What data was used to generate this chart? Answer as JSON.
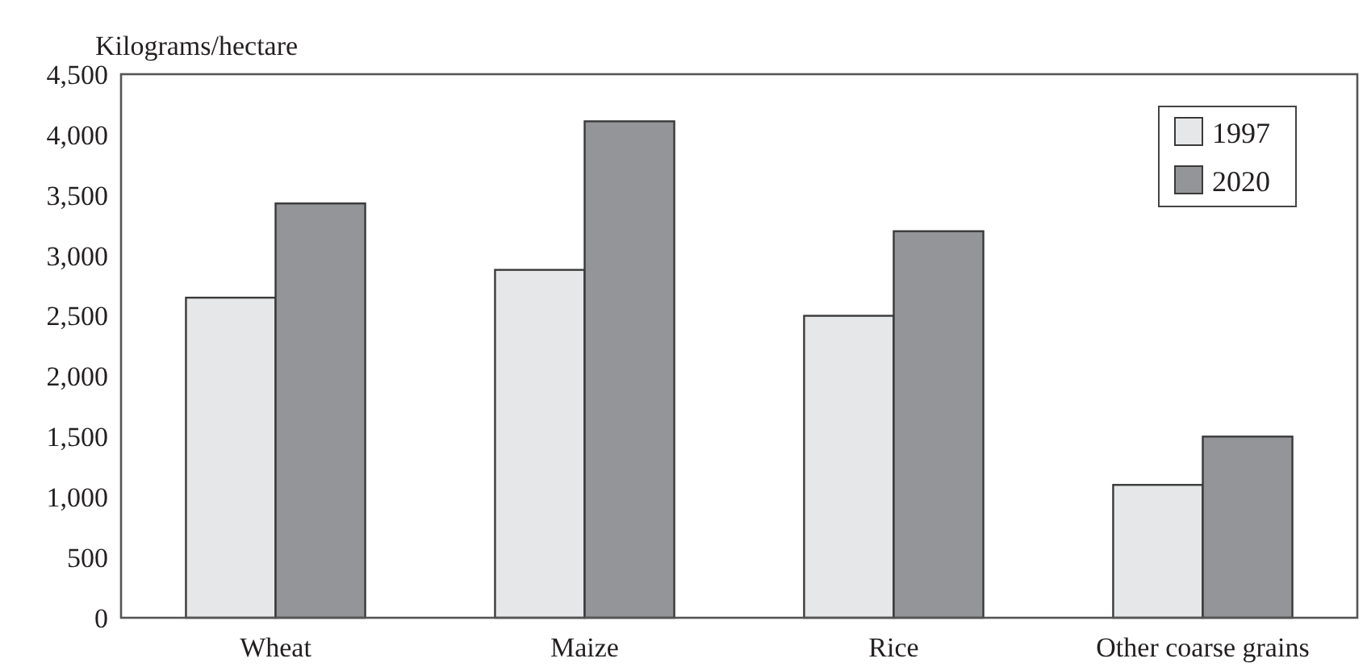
{
  "chart_data": {
    "type": "bar",
    "ylabel": "Kilograms/hectare",
    "categories": [
      "Wheat",
      "Maize",
      "Rice",
      "Other coarse grains"
    ],
    "series": [
      {
        "name": "1997",
        "color": "#e6e7e9",
        "values": [
          2650,
          2880,
          2500,
          1100
        ]
      },
      {
        "name": "2020",
        "color": "#939598",
        "values": [
          3430,
          4110,
          3200,
          1500
        ]
      }
    ],
    "ylim": [
      0,
      4500
    ],
    "yticks": [
      {
        "value": 0,
        "label": "0"
      },
      {
        "value": 500,
        "label": "500"
      },
      {
        "value": 1000,
        "label": "1,000"
      },
      {
        "value": 1500,
        "label": "1,500"
      },
      {
        "value": 2000,
        "label": "2,000"
      },
      {
        "value": 2500,
        "label": "2,500"
      },
      {
        "value": 3000,
        "label": "3,000"
      },
      {
        "value": 3500,
        "label": "3,500"
      },
      {
        "value": 4000,
        "label": "4,000"
      },
      {
        "value": 4500,
        "label": "4,500"
      }
    ],
    "grid": false,
    "legend": "top right"
  }
}
